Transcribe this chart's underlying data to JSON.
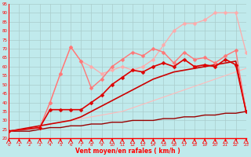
{
  "xlabel": "Vent moyen/en rafales ( km/h )",
  "xlim": [
    0,
    23
  ],
  "ylim": [
    20,
    95
  ],
  "xticks": [
    0,
    1,
    2,
    3,
    4,
    5,
    6,
    7,
    8,
    9,
    10,
    11,
    12,
    13,
    14,
    15,
    16,
    17,
    18,
    19,
    20,
    21,
    22,
    23
  ],
  "yticks": [
    20,
    25,
    30,
    35,
    40,
    45,
    50,
    55,
    60,
    65,
    70,
    75,
    80,
    85,
    90,
    95
  ],
  "bg_color": "#c0eaec",
  "grid_color": "#aacccc",
  "lines": [
    {
      "x": [
        0,
        1,
        2,
        3,
        4,
        5,
        6,
        7,
        8,
        9,
        10,
        11,
        12,
        13,
        14,
        15,
        16,
        17,
        18,
        19,
        20,
        21,
        22,
        23
      ],
      "y": [
        24,
        25,
        26,
        27,
        28,
        29,
        30,
        31,
        32,
        33,
        34,
        35,
        37,
        39,
        41,
        43,
        45,
        47,
        49,
        51,
        53,
        55,
        57,
        59
      ],
      "color": "#ffbbbb",
      "lw": 0.8,
      "marker": null,
      "ms": 0
    },
    {
      "x": [
        0,
        3,
        4,
        5,
        6,
        7,
        8,
        9,
        10,
        11,
        12,
        13,
        14,
        15,
        16,
        17,
        18,
        19,
        20,
        21,
        22,
        23
      ],
      "y": [
        24,
        26,
        40,
        56,
        71,
        63,
        60,
        56,
        58,
        60,
        58,
        60,
        64,
        72,
        80,
        84,
        84,
        86,
        90,
        90,
        90,
        68
      ],
      "color": "#ffaaaa",
      "lw": 0.9,
      "marker": "D",
      "ms": 2.5
    },
    {
      "x": [
        0,
        3,
        4,
        5,
        6,
        7,
        8,
        9,
        10,
        11,
        12,
        13,
        14,
        15,
        16,
        17,
        18,
        19,
        20,
        21,
        22,
        23
      ],
      "y": [
        24,
        26,
        40,
        56,
        71,
        63,
        48,
        53,
        60,
        64,
        68,
        66,
        70,
        68,
        62,
        68,
        64,
        65,
        62,
        66,
        69,
        35
      ],
      "color": "#ff7777",
      "lw": 1.0,
      "marker": "D",
      "ms": 2.5
    },
    {
      "x": [
        0,
        3,
        4,
        5,
        6,
        7,
        8,
        9,
        10,
        11,
        12,
        13,
        14,
        15,
        16,
        17,
        18,
        19,
        20,
        21,
        22,
        23
      ],
      "y": [
        24,
        26,
        36,
        36,
        36,
        36,
        40,
        44,
        50,
        54,
        58,
        57,
        60,
        62,
        60,
        64,
        60,
        61,
        60,
        64,
        61,
        35
      ],
      "color": "#dd0000",
      "lw": 1.2,
      "marker": "D",
      "ms": 2.5
    },
    {
      "x": [
        0,
        1,
        2,
        3,
        4,
        5,
        6,
        7,
        8,
        9,
        10,
        11,
        12,
        13,
        14,
        15,
        16,
        17,
        18,
        19,
        20,
        21,
        22,
        23
      ],
      "y": [
        24,
        25,
        26,
        27,
        28,
        29,
        30,
        32,
        35,
        38,
        41,
        44,
        47,
        50,
        53,
        55,
        57,
        58,
        59,
        60,
        61,
        62,
        63,
        35
      ],
      "color": "#cc0000",
      "lw": 1.2,
      "marker": null,
      "ms": 0
    },
    {
      "x": [
        0,
        1,
        2,
        3,
        4,
        5,
        6,
        7,
        8,
        9,
        10,
        11,
        12,
        13,
        14,
        15,
        16,
        17,
        18,
        19,
        20,
        21,
        22,
        23
      ],
      "y": [
        24,
        24,
        24,
        25,
        26,
        26,
        27,
        27,
        28,
        28,
        29,
        29,
        30,
        30,
        30,
        31,
        31,
        32,
        32,
        33,
        33,
        34,
        34,
        35
      ],
      "color": "#990000",
      "lw": 1.0,
      "marker": null,
      "ms": 0
    }
  ]
}
